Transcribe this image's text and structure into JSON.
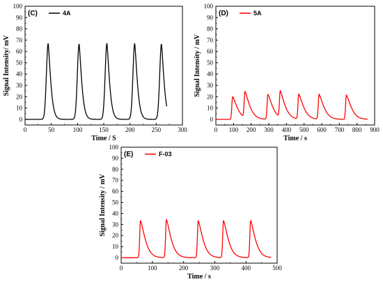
{
  "chart_data": [
    {
      "type": "line",
      "panel_label": "(C)",
      "xlabel": "Time / S",
      "ylabel": "Signal Intensity/ mV",
      "xlim": [
        0,
        300
      ],
      "ylim": [
        -5,
        100
      ],
      "xticks": [
        0,
        50,
        100,
        150,
        200,
        250,
        300
      ],
      "yticks": [
        0,
        10,
        20,
        30,
        40,
        50,
        60,
        70,
        80,
        90,
        100
      ],
      "legend_position": "top-left",
      "series": [
        {
          "name": "4A",
          "color": "#000000",
          "x_range": [
            0,
            270
          ],
          "baseline": 0,
          "peaks": [
            {
              "x": 44,
              "y": 67
            },
            {
              "x": 103,
              "y": 66.5
            },
            {
              "x": 156,
              "y": 67
            },
            {
              "x": 209,
              "y": 67
            },
            {
              "x": 260,
              "y": 66.5
            }
          ]
        }
      ]
    },
    {
      "type": "line",
      "panel_label": "(D)",
      "xlabel": "Time / s",
      "ylabel": "Signal Intensity / mV",
      "xlim": [
        0,
        900
      ],
      "ylim": [
        -5,
        100
      ],
      "xticks": [
        0,
        100,
        200,
        300,
        400,
        500,
        600,
        700,
        800,
        900
      ],
      "yticks": [
        0,
        10,
        20,
        30,
        40,
        50,
        60,
        70,
        80,
        90,
        100
      ],
      "legend_position": "top-left",
      "series": [
        {
          "name": "5A",
          "color": "#ff0000",
          "x_range": [
            0,
            860
          ],
          "baseline": 0,
          "peaks": [
            {
              "x": 95,
              "y": 20
            },
            {
              "x": 165,
              "y": 23
            },
            {
              "x": 295,
              "y": 22
            },
            {
              "x": 365,
              "y": 23.5
            },
            {
              "x": 470,
              "y": 22
            },
            {
              "x": 585,
              "y": 22
            },
            {
              "x": 740,
              "y": 21.5
            }
          ]
        }
      ]
    },
    {
      "type": "line",
      "panel_label": "(E)",
      "xlabel": "Time / s",
      "ylabel": "Signal Intensity / mV",
      "xlim": [
        0,
        500
      ],
      "ylim": [
        -5,
        100
      ],
      "xticks": [
        0,
        100,
        200,
        300,
        400,
        500
      ],
      "yticks": [
        0,
        10,
        20,
        30,
        40,
        50,
        60,
        70,
        80,
        90,
        100
      ],
      "legend_position": "top-left",
      "series": [
        {
          "name": "F-03",
          "color": "#ff0000",
          "x_range": [
            0,
            480
          ],
          "baseline": 0,
          "peaks": [
            {
              "x": 62,
              "y": 33.5
            },
            {
              "x": 145,
              "y": 34.5
            },
            {
              "x": 247,
              "y": 33.5
            },
            {
              "x": 328,
              "y": 33.5
            },
            {
              "x": 415,
              "y": 33.5
            }
          ]
        }
      ]
    }
  ]
}
